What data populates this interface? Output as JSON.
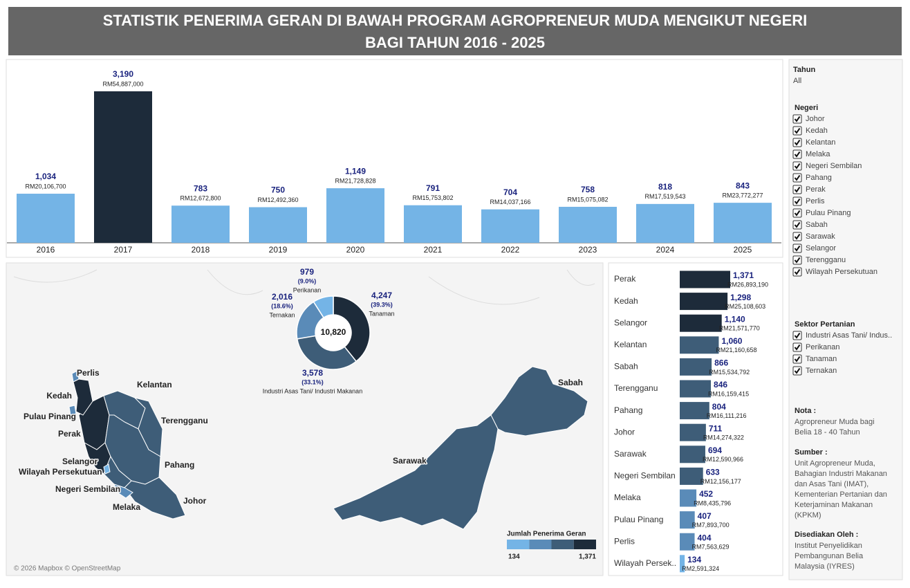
{
  "header": {
    "title_lines": [
      "STATISTIK PENERIMA GERAN DI BAWAH PROGRAM AGROPRENEUR MUDA MENGIKUT NEGERI",
      "BAGI TAHUN 2016 - 2025"
    ]
  },
  "chart_data": [
    {
      "type": "bar",
      "categories": [
        "2016",
        "2017",
        "2018",
        "2019",
        "2020",
        "2021",
        "2022",
        "2023",
        "2024",
        "2025"
      ],
      "values": [
        1034,
        3190,
        783,
        750,
        1149,
        791,
        704,
        758,
        818,
        843
      ],
      "value_labels": [
        "1,034",
        "3,190",
        "783",
        "750",
        "1,149",
        "791",
        "704",
        "758",
        "818",
        "843"
      ],
      "amounts": [
        20106700,
        54887000,
        12672800,
        12492360,
        21728828,
        15753802,
        14037166,
        15075082,
        17519543,
        23772277
      ],
      "amount_labels": [
        "RM20,106,700",
        "RM54,887,000",
        "RM12,672,800",
        "RM12,492,360",
        "RM21,728,828",
        "RM15,753,802",
        "RM14,037,166",
        "RM15,075,082",
        "RM17,519,543",
        "RM23,772,277"
      ],
      "colors": [
        "#74b4e6",
        "#1d2b3a",
        "#74b4e6",
        "#74b4e6",
        "#74b4e6",
        "#74b4e6",
        "#74b4e6",
        "#74b4e6",
        "#74b4e6",
        "#74b4e6"
      ],
      "ylim": [
        0,
        3190
      ]
    },
    {
      "type": "donut",
      "categories": [
        "Tanaman",
        "Industri Asas Tani/ Industri Makanan",
        "Ternakan",
        "Perikanan"
      ],
      "values": [
        4247,
        3578,
        2016,
        979
      ],
      "value_labels": [
        "4,247",
        "3,578",
        "2,016",
        "979"
      ],
      "percents": [
        39.3,
        33.1,
        18.6,
        9.0
      ],
      "percent_labels": [
        "(39.3%)",
        "(33.1%)",
        "(18.6%)",
        "(9.0%)"
      ],
      "colors": [
        "#1d2b3a",
        "#3e5d78",
        "#5a8bb8",
        "#74b4e6"
      ],
      "total": 10820,
      "total_label": "10,820"
    },
    {
      "type": "hbar",
      "categories": [
        "Perak",
        "Kedah",
        "Selangor",
        "Kelantan",
        "Sabah",
        "Terengganu",
        "Pahang",
        "Johor",
        "Sarawak",
        "Negeri Sembilan",
        "Melaka",
        "Pulau Pinang",
        "Perlis",
        "Wilayah Persek.."
      ],
      "values": [
        1371,
        1298,
        1140,
        1060,
        866,
        846,
        804,
        711,
        694,
        633,
        452,
        407,
        404,
        134
      ],
      "value_labels": [
        "1,371",
        "1,298",
        "1,140",
        "1,060",
        "866",
        "846",
        "804",
        "711",
        "694",
        "633",
        "452",
        "407",
        "404",
        "134"
      ],
      "amounts": [
        26893190,
        25108603,
        21571770,
        21160658,
        15534792,
        16159415,
        16111216,
        14274322,
        12590966,
        12156177,
        8435796,
        7893700,
        7563629,
        2591324
      ],
      "amount_labels": [
        "RM26,893,190",
        "RM25,108,603",
        "RM21,571,770",
        "RM21,160,658",
        "RM15,534,792",
        "RM16,159,415",
        "RM16,111,216",
        "RM14,274,322",
        "RM12,590,966",
        "RM12,156,177",
        "RM8,435,796",
        "RM7,893,700",
        "RM7,563,629",
        "RM2,591,324"
      ],
      "colors": [
        "#1d2b3a",
        "#1d2b3a",
        "#1d2b3a",
        "#3e5d78",
        "#3e5d78",
        "#3e5d78",
        "#3e5d78",
        "#3e5d78",
        "#3e5d78",
        "#3e5d78",
        "#5a8bb8",
        "#5a8bb8",
        "#5a8bb8",
        "#74b4e6"
      ],
      "xlim": [
        0,
        1371
      ]
    },
    {
      "type": "map",
      "labels": [
        "Perlis",
        "Kedah",
        "Pulau Pinang",
        "Perak",
        "Kelantan",
        "Terengganu",
        "Pahang",
        "Selangor",
        "Wilayah Persekutuan",
        "Negeri Sembilan",
        "Melaka",
        "Johor",
        "Sarawak",
        "Sabah"
      ],
      "legend_title": "Jumlah Penerima Geran",
      "legend_min": 134,
      "legend_max": 1371,
      "legend_max_label": "1,371",
      "legend_colors": [
        "#74b4e6",
        "#5a8bb8",
        "#3e5d78",
        "#1d2b3a"
      ],
      "attribution": "© 2026 Mapbox © OpenStreetMap"
    }
  ],
  "filters": {
    "tahun": {
      "title": "Tahun",
      "value": "All"
    },
    "negeri": {
      "title": "Negeri",
      "items": [
        "Johor",
        "Kedah",
        "Kelantan",
        "Melaka",
        "Negeri Sembilan",
        "Pahang",
        "Perak",
        "Perlis",
        "Pulau Pinang",
        "Sabah",
        "Sarawak",
        "Selangor",
        "Terengganu",
        "Wilayah Persekutuan"
      ]
    },
    "sektor": {
      "title": "Sektor Pertanian",
      "items": [
        "Industri Asas Tani/ Indus..",
        "Perikanan",
        "Tanaman",
        "Ternakan"
      ]
    }
  },
  "notes": [
    {
      "title": "Nota :",
      "lines": [
        "Agropreneur Muda bagi",
        "Belia 18 - 40 Tahun"
      ]
    },
    {
      "title": "Sumber :",
      "lines": [
        "Unit Agropreneur Muda,",
        "Bahagian Industri Makanan",
        "dan Asas Tani (IMAT),",
        "Kementerian Pertanian dan",
        "Keterjaminan Makanan",
        "(KPKM)"
      ]
    },
    {
      "title": "Disediakan Oleh :",
      "lines": [
        "Institut Penyelidikan",
        "Pembangunan Belia",
        "Malaysia (IYRES)"
      ]
    }
  ]
}
